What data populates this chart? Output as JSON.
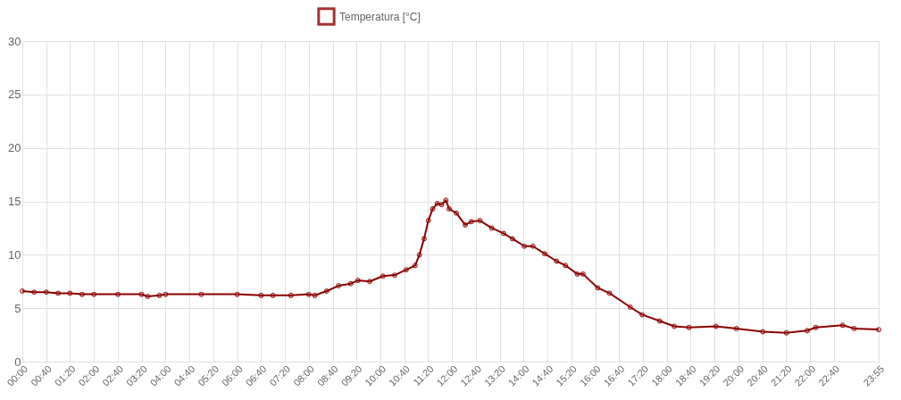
{
  "chart_data": {
    "type": "line",
    "legend": "top",
    "grid": true,
    "marker": "circle",
    "line_style": "solid",
    "xlim": [
      0,
      23.9167
    ],
    "ylim": [
      0,
      30
    ],
    "yticks": [
      0,
      5,
      10,
      15,
      20,
      25,
      30
    ],
    "xticks": [
      {
        "value": 0,
        "label": "00:00"
      },
      {
        "value": 0.6667,
        "label": "00:40"
      },
      {
        "value": 1.3333,
        "label": "01:20"
      },
      {
        "value": 2,
        "label": "02:00"
      },
      {
        "value": 2.6667,
        "label": "02:40"
      },
      {
        "value": 3.3333,
        "label": "03:20"
      },
      {
        "value": 4,
        "label": "04:00"
      },
      {
        "value": 4.6667,
        "label": "04:40"
      },
      {
        "value": 5.3333,
        "label": "05:20"
      },
      {
        "value": 6,
        "label": "06:00"
      },
      {
        "value": 6.6667,
        "label": "06:40"
      },
      {
        "value": 7.3333,
        "label": "07:20"
      },
      {
        "value": 8,
        "label": "08:00"
      },
      {
        "value": 8.6667,
        "label": "08:40"
      },
      {
        "value": 9.3333,
        "label": "09:20"
      },
      {
        "value": 10,
        "label": "10:00"
      },
      {
        "value": 10.6667,
        "label": "10:40"
      },
      {
        "value": 11.3333,
        "label": "11:20"
      },
      {
        "value": 12,
        "label": "12:00"
      },
      {
        "value": 12.6667,
        "label": "12:40"
      },
      {
        "value": 13.3333,
        "label": "13:20"
      },
      {
        "value": 14,
        "label": "14:00"
      },
      {
        "value": 14.6667,
        "label": "14:40"
      },
      {
        "value": 15.3333,
        "label": "15:20"
      },
      {
        "value": 16,
        "label": "16:00"
      },
      {
        "value": 16.6667,
        "label": "16:40"
      },
      {
        "value": 17.3333,
        "label": "17:20"
      },
      {
        "value": 18,
        "label": "18:00"
      },
      {
        "value": 18.6667,
        "label": "18:40"
      },
      {
        "value": 19.3333,
        "label": "19:20"
      },
      {
        "value": 20,
        "label": "20:00"
      },
      {
        "value": 20.6667,
        "label": "20:40"
      },
      {
        "value": 21.3333,
        "label": "21:20"
      },
      {
        "value": 22,
        "label": "22:00"
      },
      {
        "value": 22.6667,
        "label": "22:40"
      },
      {
        "value": 23.9167,
        "label": "23:55"
      }
    ],
    "x": [
      0,
      0.33,
      0.67,
      1.0,
      1.33,
      1.67,
      2.0,
      2.67,
      3.33,
      3.5,
      3.83,
      4.0,
      5.0,
      6.0,
      6.67,
      7.0,
      7.5,
      8.0,
      8.17,
      8.5,
      8.83,
      9.17,
      9.37,
      9.7,
      10.07,
      10.4,
      10.72,
      10.97,
      11.09,
      11.22,
      11.34,
      11.46,
      11.59,
      11.71,
      11.83,
      11.92,
      12.12,
      12.37,
      12.54,
      12.78,
      13.11,
      13.44,
      13.69,
      14.02,
      14.26,
      14.59,
      14.92,
      15.17,
      15.5,
      15.66,
      16.07,
      16.4,
      16.98,
      17.31,
      17.8,
      18.21,
      18.62,
      19.37,
      19.94,
      20.68,
      21.34,
      21.92,
      22.16,
      22.91,
      23.23,
      23.9167
    ],
    "series": [
      {
        "name": "Temperatura [°C]",
        "color": "#8b0000",
        "values": [
          6.6,
          6.5,
          6.5,
          6.4,
          6.4,
          6.3,
          6.3,
          6.3,
          6.3,
          6.1,
          6.2,
          6.3,
          6.3,
          6.3,
          6.2,
          6.2,
          6.2,
          6.3,
          6.2,
          6.6,
          7.1,
          7.3,
          7.6,
          7.5,
          8.0,
          8.1,
          8.6,
          9.0,
          10.0,
          11.5,
          13.2,
          14.3,
          14.8,
          14.7,
          15.1,
          14.3,
          13.9,
          12.8,
          13.1,
          13.2,
          12.5,
          12.0,
          11.5,
          10.8,
          10.8,
          10.1,
          9.4,
          9.0,
          8.2,
          8.2,
          6.9,
          6.4,
          5.1,
          4.4,
          3.8,
          3.3,
          3.2,
          3.3,
          3.1,
          2.8,
          2.7,
          2.9,
          3.2,
          3.4,
          3.1,
          3.0
        ]
      }
    ]
  }
}
